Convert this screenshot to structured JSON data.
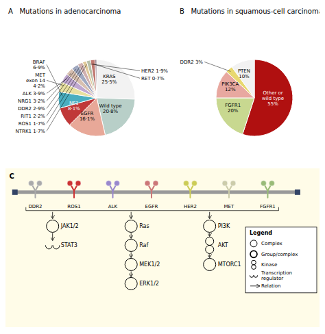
{
  "chart_data": [
    {
      "type": "pie",
      "title": "A   Mutations in adenocarcinoma",
      "values": [
        25.5,
        20.8,
        16.1,
        8.1,
        6.9,
        4.2,
        3.9,
        3.2,
        2.9,
        2.2,
        1.7,
        1.7,
        1.9,
        0.7
      ],
      "colors": [
        "#f2f2f2",
        "#b8cfc8",
        "#e8a898",
        "#c03838",
        "#4aaec0",
        "#e8e0a0",
        "#c0a8d0",
        "#d8c0b0",
        "#a0a8c0",
        "#d0b0b0",
        "#e0c898",
        "#b8c0a8",
        "#c07870",
        "#887080"
      ],
      "value_labels": [
        "KRAS\n25·5%",
        "Wild type\n20·8%",
        "EGFR\n16·1%",
        "NF1\n8·1%",
        "BRAF\n6·9%",
        "MET\nexon 14\n4·2%",
        "ALK 3·9%",
        "NRG1 3·2%",
        "DDR2 2·9%",
        "RIT1 2·2%",
        "ROS1 1·7%",
        "NTRK1 1·7%",
        "HER2 1·9%",
        "RET 0·7%"
      ],
      "data_labels": true
    },
    {
      "type": "pie",
      "title": "B   Mutations in squamous-cell carcinoma",
      "values": [
        55,
        20,
        12,
        3,
        10
      ],
      "colors": [
        "#b01010",
        "#c8d890",
        "#e8a8a0",
        "#e8d870",
        "#f2f2f2"
      ],
      "value_labels": [
        "Other or\nwild type\n55%",
        "FGFR1\n20%",
        "PIK3CA\n12%",
        "DDR2 3%",
        "PTEN\n10%"
      ],
      "data_labels": true
    },
    {
      "type": "diagram",
      "title": "C",
      "categories": [
        "DDR2",
        "ROS1",
        "ALK",
        "EGFR",
        "HER2",
        "MET",
        "FGFR1"
      ],
      "colors": [
        "#aaaaaa",
        "#cc3333",
        "#9988cc",
        "#cc7777",
        "#cccc55",
        "#ccccaa",
        "#99bb77"
      ],
      "color": "#fffce8",
      "legend": "right",
      "annotations": {
        "pathways": [
          [
            {
              "text": "JAK1/2",
              "marker": "circle"
            },
            {
              "text": "STAT3",
              "marker": "transcription"
            }
          ],
          [
            {
              "text": "Ras",
              "marker": "circle"
            },
            {
              "text": "Raf",
              "marker": "circle"
            },
            {
              "text": "MEK1/2",
              "marker": "circle"
            },
            {
              "text": "ERK1/2",
              "marker": "circle"
            }
          ],
          [
            {
              "text": "PI3K",
              "marker": "circle"
            },
            {
              "text": "AKT",
              "marker": "kinase"
            },
            {
              "text": "MTORC1",
              "marker": "circle"
            }
          ]
        ],
        "legend_title": "Legend",
        "legend_items": [
          {
            "text": "Complex",
            "marker": "circle"
          },
          {
            "text": "Group/complex",
            "marker": "thick_circle"
          },
          {
            "text": "Kinase",
            "marker": "kinase"
          },
          {
            "text": "Transcription\nregulator",
            "marker": "transcription"
          },
          {
            "text": "Relation",
            "marker": "arrow"
          }
        ]
      }
    }
  ]
}
